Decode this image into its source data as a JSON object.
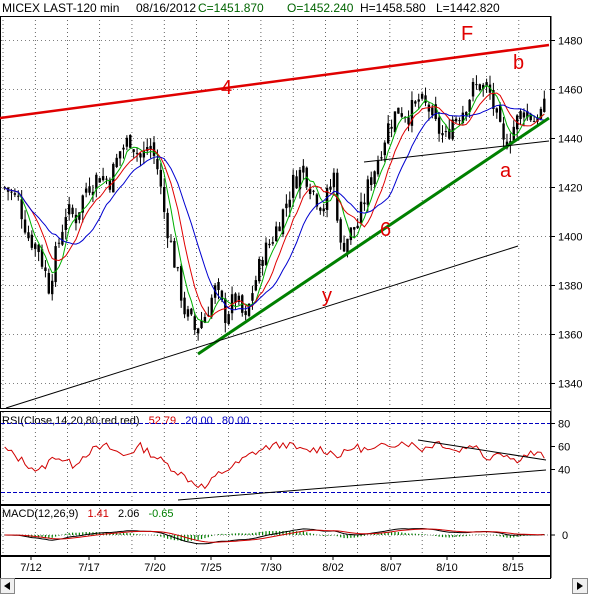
{
  "header": {
    "symbol": "MICEX LAST-120 min",
    "date": "08/16/2012",
    "close": "C=1451.870",
    "open": "O=1452.240",
    "high": "H=1458.580",
    "low": "L=1442.820"
  },
  "colors": {
    "price": "#000000",
    "ma_fast": "#00b000",
    "ma_mid": "#e00000",
    "ma_slow": "#0000d0",
    "trend_red": "#e00000",
    "trend_green": "#008000",
    "grid": "#000000",
    "rsi_line": "#d00000",
    "rsi_band": "#0000c0",
    "macd_line": "#000000",
    "macd_signal": "#d00000",
    "macd_hist": "#008000"
  },
  "chart_data": [
    {
      "type": "candlestick",
      "panel": "price",
      "ylim": [
        1330,
        1490
      ],
      "y_ticks": [
        1340,
        1360,
        1380,
        1400,
        1420,
        1440,
        1460,
        1480
      ],
      "x_ticks": [
        "7/12",
        "7/17",
        "7/20",
        "7/25",
        "7/30",
        "8/02",
        "8/07",
        "8/10",
        "8/15"
      ],
      "n_bars": 160,
      "close_path": [
        [
          0,
          1420
        ],
        [
          4,
          1415
        ],
        [
          7,
          1400
        ],
        [
          10,
          1395
        ],
        [
          13,
          1380
        ],
        [
          15,
          1392
        ],
        [
          18,
          1410
        ],
        [
          21,
          1408
        ],
        [
          24,
          1420
        ],
        [
          28,
          1425
        ],
        [
          31,
          1423
        ],
        [
          34,
          1435
        ],
        [
          37,
          1440
        ],
        [
          40,
          1432
        ],
        [
          43,
          1437
        ],
        [
          45,
          1428
        ],
        [
          47,
          1410
        ],
        [
          50,
          1390
        ],
        [
          53,
          1370
        ],
        [
          56,
          1362
        ],
        [
          59,
          1368
        ],
        [
          62,
          1378
        ],
        [
          65,
          1368
        ],
        [
          68,
          1375
        ],
        [
          71,
          1365
        ],
        [
          73,
          1378
        ],
        [
          76,
          1392
        ],
        [
          79,
          1400
        ],
        [
          82,
          1410
        ],
        [
          85,
          1422
        ],
        [
          88,
          1428
        ],
        [
          91,
          1418
        ],
        [
          94,
          1412
        ],
        [
          97,
          1425
        ],
        [
          99,
          1395
        ],
        [
          101,
          1400
        ],
        [
          104,
          1405
        ],
        [
          107,
          1420
        ],
        [
          110,
          1432
        ],
        [
          113,
          1445
        ],
        [
          116,
          1452
        ],
        [
          119,
          1450
        ],
        [
          122,
          1455
        ],
        [
          125,
          1452
        ],
        [
          127,
          1445
        ],
        [
          130,
          1440
        ],
        [
          132,
          1448
        ],
        [
          135,
          1452
        ],
        [
          138,
          1460
        ],
        [
          140,
          1462
        ],
        [
          143,
          1458
        ],
        [
          145,
          1448
        ],
        [
          147,
          1437
        ],
        [
          150,
          1445
        ],
        [
          153,
          1452
        ],
        [
          156,
          1448
        ],
        [
          159,
          1452
        ]
      ],
      "moving_averages": [
        "fast",
        "mid",
        "slow"
      ],
      "annotations": [
        "4",
        "F",
        "b",
        "a",
        "6",
        "y"
      ]
    },
    {
      "type": "line",
      "panel": "rsi",
      "legend": {
        "name": "RSI(Close,14,20,80,red,red)",
        "value": "52.79",
        "low": "20.00",
        "high": "80.00"
      },
      "ylim": [
        10,
        90
      ],
      "y_ticks": [
        40,
        60,
        80
      ],
      "bands": [
        20,
        80
      ],
      "values_path": [
        [
          0,
          58
        ],
        [
          5,
          48
        ],
        [
          10,
          38
        ],
        [
          15,
          52
        ],
        [
          20,
          44
        ],
        [
          25,
          56
        ],
        [
          30,
          60
        ],
        [
          35,
          52
        ],
        [
          40,
          60
        ],
        [
          45,
          50
        ],
        [
          50,
          40
        ],
        [
          55,
          30
        ],
        [
          59,
          24
        ],
        [
          63,
          36
        ],
        [
          68,
          44
        ],
        [
          73,
          54
        ],
        [
          78,
          60
        ],
        [
          83,
          62
        ],
        [
          88,
          56
        ],
        [
          93,
          58
        ],
        [
          99,
          52
        ],
        [
          103,
          60
        ],
        [
          108,
          56
        ],
        [
          113,
          62
        ],
        [
          118,
          64
        ],
        [
          123,
          58
        ],
        [
          128,
          64
        ],
        [
          133,
          56
        ],
        [
          138,
          62
        ],
        [
          142,
          50
        ],
        [
          146,
          56
        ],
        [
          150,
          48
        ],
        [
          155,
          54
        ],
        [
          159,
          52
        ]
      ]
    },
    {
      "type": "line",
      "panel": "macd",
      "legend": {
        "name": "MACD(12,26,9)",
        "macd": "1.41",
        "signal": "2.06",
        "hist": "-0.65"
      },
      "y_ticks": [
        0
      ]
    }
  ]
}
